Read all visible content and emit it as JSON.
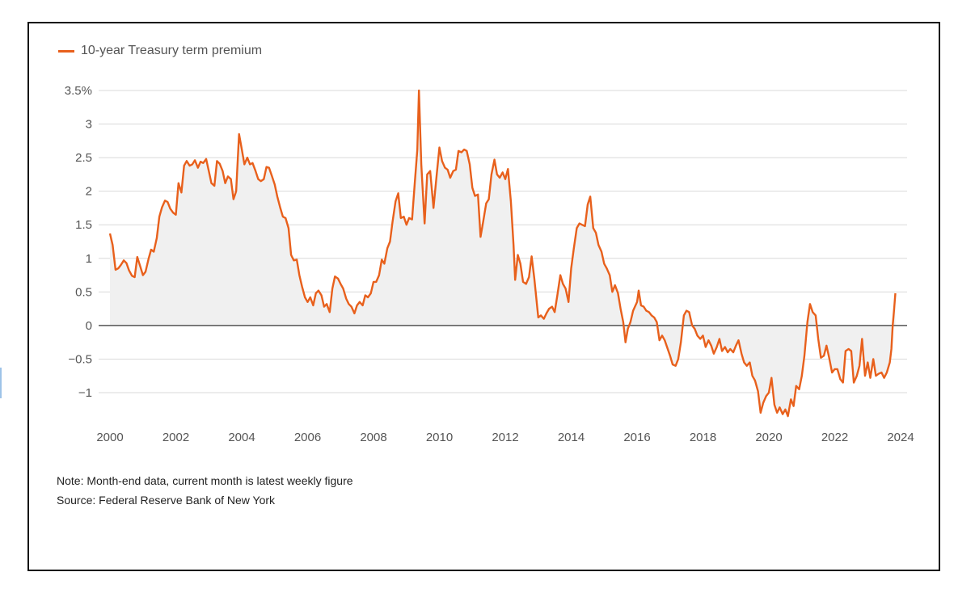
{
  "chart_data": {
    "type": "area",
    "legend": [
      {
        "name": "10-year Treasury term premium",
        "color": "#e8601c"
      }
    ],
    "legend_position": "top-left",
    "x_ticks": [
      "2000",
      "2002",
      "2004",
      "2006",
      "2008",
      "2010",
      "2012",
      "2014",
      "2016",
      "2018",
      "2020",
      "2022",
      "2024"
    ],
    "y_ticks": [
      "3.5%",
      "3",
      "2.5",
      "2",
      "1.5",
      "1",
      "0.5",
      "0",
      "−0.5",
      "−1"
    ],
    "xlim": [
      2000,
      2024
    ],
    "ylim": [
      -1.4,
      3.55
    ],
    "grid": true,
    "colors": {
      "line": "#e8601c",
      "fill": "#f0f0f0",
      "grid": "#d9d9d9",
      "zero": "#555555"
    },
    "series": [
      {
        "name": "10-year Treasury term premium",
        "points": [
          [
            2000.0,
            1.37
          ],
          [
            2000.08,
            1.2
          ],
          [
            2000.17,
            0.83
          ],
          [
            2000.25,
            0.85
          ],
          [
            2000.33,
            0.9
          ],
          [
            2000.42,
            0.97
          ],
          [
            2000.5,
            0.93
          ],
          [
            2000.58,
            0.82
          ],
          [
            2000.67,
            0.74
          ],
          [
            2000.75,
            0.72
          ],
          [
            2000.83,
            1.02
          ],
          [
            2000.92,
            0.88
          ],
          [
            2001.0,
            0.75
          ],
          [
            2001.08,
            0.8
          ],
          [
            2001.17,
            0.99
          ],
          [
            2001.25,
            1.13
          ],
          [
            2001.33,
            1.1
          ],
          [
            2001.42,
            1.3
          ],
          [
            2001.5,
            1.62
          ],
          [
            2001.58,
            1.76
          ],
          [
            2001.67,
            1.86
          ],
          [
            2001.75,
            1.84
          ],
          [
            2001.83,
            1.74
          ],
          [
            2001.92,
            1.68
          ],
          [
            2002.0,
            1.65
          ],
          [
            2002.08,
            2.12
          ],
          [
            2002.17,
            1.98
          ],
          [
            2002.25,
            2.38
          ],
          [
            2002.33,
            2.45
          ],
          [
            2002.42,
            2.38
          ],
          [
            2002.5,
            2.4
          ],
          [
            2002.58,
            2.46
          ],
          [
            2002.67,
            2.35
          ],
          [
            2002.75,
            2.44
          ],
          [
            2002.83,
            2.42
          ],
          [
            2002.92,
            2.48
          ],
          [
            2003.0,
            2.3
          ],
          [
            2003.08,
            2.12
          ],
          [
            2003.17,
            2.08
          ],
          [
            2003.25,
            2.45
          ],
          [
            2003.33,
            2.41
          ],
          [
            2003.42,
            2.3
          ],
          [
            2003.5,
            2.12
          ],
          [
            2003.58,
            2.22
          ],
          [
            2003.67,
            2.18
          ],
          [
            2003.75,
            1.88
          ],
          [
            2003.83,
            2.0
          ],
          [
            2003.92,
            2.85
          ],
          [
            2004.0,
            2.63
          ],
          [
            2004.08,
            2.4
          ],
          [
            2004.17,
            2.5
          ],
          [
            2004.25,
            2.4
          ],
          [
            2004.33,
            2.42
          ],
          [
            2004.42,
            2.3
          ],
          [
            2004.5,
            2.18
          ],
          [
            2004.58,
            2.15
          ],
          [
            2004.67,
            2.18
          ],
          [
            2004.75,
            2.36
          ],
          [
            2004.83,
            2.35
          ],
          [
            2004.92,
            2.22
          ],
          [
            2005.0,
            2.1
          ],
          [
            2005.08,
            1.92
          ],
          [
            2005.17,
            1.75
          ],
          [
            2005.25,
            1.62
          ],
          [
            2005.33,
            1.6
          ],
          [
            2005.42,
            1.45
          ],
          [
            2005.5,
            1.05
          ],
          [
            2005.58,
            0.97
          ],
          [
            2005.67,
            0.98
          ],
          [
            2005.75,
            0.75
          ],
          [
            2005.83,
            0.58
          ],
          [
            2005.92,
            0.42
          ],
          [
            2006.0,
            0.35
          ],
          [
            2006.08,
            0.42
          ],
          [
            2006.17,
            0.3
          ],
          [
            2006.25,
            0.48
          ],
          [
            2006.33,
            0.52
          ],
          [
            2006.42,
            0.45
          ],
          [
            2006.5,
            0.28
          ],
          [
            2006.58,
            0.32
          ],
          [
            2006.67,
            0.2
          ],
          [
            2006.75,
            0.55
          ],
          [
            2006.83,
            0.73
          ],
          [
            2006.92,
            0.7
          ],
          [
            2007.0,
            0.62
          ],
          [
            2007.08,
            0.55
          ],
          [
            2007.17,
            0.4
          ],
          [
            2007.25,
            0.32
          ],
          [
            2007.33,
            0.28
          ],
          [
            2007.42,
            0.18
          ],
          [
            2007.5,
            0.3
          ],
          [
            2007.58,
            0.35
          ],
          [
            2007.67,
            0.3
          ],
          [
            2007.75,
            0.45
          ],
          [
            2007.83,
            0.42
          ],
          [
            2007.92,
            0.48
          ],
          [
            2008.0,
            0.65
          ],
          [
            2008.08,
            0.65
          ],
          [
            2008.17,
            0.75
          ],
          [
            2008.25,
            0.98
          ],
          [
            2008.33,
            0.92
          ],
          [
            2008.42,
            1.15
          ],
          [
            2008.5,
            1.25
          ],
          [
            2008.58,
            1.55
          ],
          [
            2008.67,
            1.85
          ],
          [
            2008.75,
            1.97
          ],
          [
            2008.83,
            1.6
          ],
          [
            2008.92,
            1.62
          ],
          [
            2009.0,
            1.5
          ],
          [
            2009.08,
            1.6
          ],
          [
            2009.17,
            1.58
          ],
          [
            2009.25,
            2.1
          ],
          [
            2009.33,
            2.62
          ],
          [
            2009.38,
            3.5
          ],
          [
            2009.45,
            2.4
          ],
          [
            2009.55,
            1.52
          ],
          [
            2009.63,
            2.25
          ],
          [
            2009.72,
            2.3
          ],
          [
            2009.82,
            1.75
          ],
          [
            2009.92,
            2.25
          ],
          [
            2010.0,
            2.65
          ],
          [
            2010.08,
            2.45
          ],
          [
            2010.17,
            2.35
          ],
          [
            2010.25,
            2.32
          ],
          [
            2010.33,
            2.2
          ],
          [
            2010.42,
            2.3
          ],
          [
            2010.5,
            2.32
          ],
          [
            2010.58,
            2.6
          ],
          [
            2010.67,
            2.58
          ],
          [
            2010.75,
            2.62
          ],
          [
            2010.83,
            2.6
          ],
          [
            2010.92,
            2.4
          ],
          [
            2011.0,
            2.05
          ],
          [
            2011.08,
            1.93
          ],
          [
            2011.17,
            1.95
          ],
          [
            2011.25,
            1.32
          ],
          [
            2011.33,
            1.55
          ],
          [
            2011.42,
            1.82
          ],
          [
            2011.5,
            1.88
          ],
          [
            2011.58,
            2.25
          ],
          [
            2011.67,
            2.47
          ],
          [
            2011.75,
            2.25
          ],
          [
            2011.83,
            2.2
          ],
          [
            2011.92,
            2.28
          ],
          [
            2012.0,
            2.18
          ],
          [
            2012.08,
            2.33
          ],
          [
            2012.17,
            1.85
          ],
          [
            2012.25,
            1.2
          ],
          [
            2012.3,
            0.68
          ],
          [
            2012.38,
            1.05
          ],
          [
            2012.46,
            0.92
          ],
          [
            2012.54,
            0.65
          ],
          [
            2012.63,
            0.62
          ],
          [
            2012.72,
            0.72
          ],
          [
            2012.8,
            1.03
          ],
          [
            2012.88,
            0.7
          ],
          [
            2013.0,
            0.12
          ],
          [
            2013.08,
            0.15
          ],
          [
            2013.17,
            0.1
          ],
          [
            2013.25,
            0.18
          ],
          [
            2013.33,
            0.25
          ],
          [
            2013.42,
            0.28
          ],
          [
            2013.5,
            0.2
          ],
          [
            2013.58,
            0.45
          ],
          [
            2013.67,
            0.75
          ],
          [
            2013.75,
            0.62
          ],
          [
            2013.83,
            0.55
          ],
          [
            2013.92,
            0.35
          ],
          [
            2014.0,
            0.85
          ],
          [
            2014.08,
            1.15
          ],
          [
            2014.17,
            1.45
          ],
          [
            2014.25,
            1.52
          ],
          [
            2014.33,
            1.5
          ],
          [
            2014.42,
            1.48
          ],
          [
            2014.5,
            1.8
          ],
          [
            2014.58,
            1.92
          ],
          [
            2014.67,
            1.45
          ],
          [
            2014.75,
            1.38
          ],
          [
            2014.83,
            1.2
          ],
          [
            2014.92,
            1.1
          ],
          [
            2015.0,
            0.92
          ],
          [
            2015.08,
            0.85
          ],
          [
            2015.17,
            0.75
          ],
          [
            2015.25,
            0.5
          ],
          [
            2015.33,
            0.6
          ],
          [
            2015.42,
            0.48
          ],
          [
            2015.5,
            0.25
          ],
          [
            2015.58,
            0.05
          ],
          [
            2015.65,
            -0.25
          ],
          [
            2015.72,
            -0.05
          ],
          [
            2015.8,
            0.05
          ],
          [
            2015.88,
            0.22
          ],
          [
            2016.0,
            0.35
          ],
          [
            2016.05,
            0.52
          ],
          [
            2016.12,
            0.3
          ],
          [
            2016.2,
            0.28
          ],
          [
            2016.28,
            0.22
          ],
          [
            2016.36,
            0.2
          ],
          [
            2016.44,
            0.15
          ],
          [
            2016.52,
            0.12
          ],
          [
            2016.6,
            0.05
          ],
          [
            2016.68,
            -0.22
          ],
          [
            2016.76,
            -0.15
          ],
          [
            2016.84,
            -0.22
          ],
          [
            2017.0,
            -0.45
          ],
          [
            2017.08,
            -0.58
          ],
          [
            2017.17,
            -0.6
          ],
          [
            2017.25,
            -0.5
          ],
          [
            2017.33,
            -0.25
          ],
          [
            2017.42,
            0.15
          ],
          [
            2017.5,
            0.22
          ],
          [
            2017.58,
            0.2
          ],
          [
            2017.67,
            0.0
          ],
          [
            2017.75,
            -0.05
          ],
          [
            2017.83,
            -0.15
          ],
          [
            2017.92,
            -0.2
          ],
          [
            2018.0,
            -0.15
          ],
          [
            2018.08,
            -0.32
          ],
          [
            2018.17,
            -0.22
          ],
          [
            2018.25,
            -0.3
          ],
          [
            2018.33,
            -0.42
          ],
          [
            2018.42,
            -0.32
          ],
          [
            2018.5,
            -0.2
          ],
          [
            2018.58,
            -0.38
          ],
          [
            2018.67,
            -0.32
          ],
          [
            2018.75,
            -0.4
          ],
          [
            2018.83,
            -0.35
          ],
          [
            2018.92,
            -0.4
          ],
          [
            2019.0,
            -0.3
          ],
          [
            2019.08,
            -0.22
          ],
          [
            2019.17,
            -0.42
          ],
          [
            2019.25,
            -0.55
          ],
          [
            2019.33,
            -0.6
          ],
          [
            2019.42,
            -0.55
          ],
          [
            2019.5,
            -0.75
          ],
          [
            2019.58,
            -0.82
          ],
          [
            2019.67,
            -0.98
          ],
          [
            2019.75,
            -1.3
          ],
          [
            2019.83,
            -1.15
          ],
          [
            2019.92,
            -1.05
          ],
          [
            2020.0,
            -1.0
          ],
          [
            2020.08,
            -0.78
          ],
          [
            2020.17,
            -1.18
          ],
          [
            2020.25,
            -1.3
          ],
          [
            2020.33,
            -1.22
          ],
          [
            2020.42,
            -1.32
          ],
          [
            2020.5,
            -1.25
          ],
          [
            2020.58,
            -1.35
          ],
          [
            2020.67,
            -1.1
          ],
          [
            2020.75,
            -1.2
          ],
          [
            2020.83,
            -0.9
          ],
          [
            2020.92,
            -0.95
          ],
          [
            2021.0,
            -0.75
          ],
          [
            2021.08,
            -0.45
          ],
          [
            2021.17,
            0.05
          ],
          [
            2021.25,
            0.32
          ],
          [
            2021.33,
            0.2
          ],
          [
            2021.42,
            0.15
          ],
          [
            2021.5,
            -0.2
          ],
          [
            2021.58,
            -0.48
          ],
          [
            2021.67,
            -0.45
          ],
          [
            2021.75,
            -0.3
          ],
          [
            2021.83,
            -0.48
          ],
          [
            2021.92,
            -0.7
          ],
          [
            2022.0,
            -0.65
          ],
          [
            2022.08,
            -0.65
          ],
          [
            2022.17,
            -0.8
          ],
          [
            2022.25,
            -0.85
          ],
          [
            2022.33,
            -0.38
          ],
          [
            2022.42,
            -0.35
          ],
          [
            2022.5,
            -0.38
          ],
          [
            2022.58,
            -0.85
          ],
          [
            2022.67,
            -0.75
          ],
          [
            2022.75,
            -0.6
          ],
          [
            2022.83,
            -0.2
          ],
          [
            2022.92,
            -0.75
          ],
          [
            2023.0,
            -0.55
          ],
          [
            2023.08,
            -0.78
          ],
          [
            2023.17,
            -0.5
          ],
          [
            2023.25,
            -0.75
          ],
          [
            2023.33,
            -0.72
          ],
          [
            2023.42,
            -0.7
          ],
          [
            2023.5,
            -0.78
          ],
          [
            2023.58,
            -0.7
          ],
          [
            2023.67,
            -0.55
          ],
          [
            2023.72,
            -0.35
          ],
          [
            2023.76,
            0.0
          ],
          [
            2023.8,
            0.22
          ],
          [
            2023.84,
            0.48
          ]
        ]
      }
    ]
  },
  "notes": {
    "note": "Note: Month-end data, current month is latest weekly figure",
    "source": "Source: Federal Reserve Bank of New York"
  }
}
